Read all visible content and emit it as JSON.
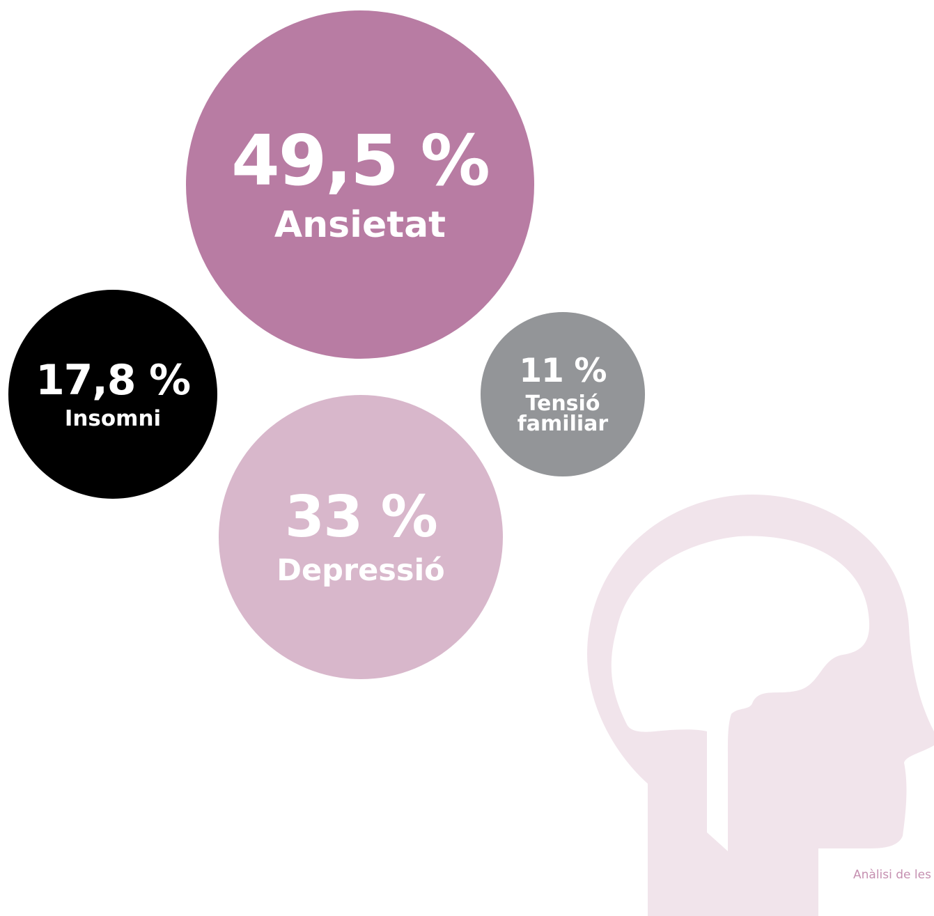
{
  "chart_data": {
    "type": "bubble",
    "categories": [
      "Ansietat",
      "Insomni",
      "Tensió familiar",
      "Depressió"
    ],
    "values": [
      49.5,
      17.8,
      11,
      33
    ],
    "value_labels": [
      "49,5 %",
      "17,8 %",
      "11 %",
      "33 %"
    ],
    "colors": [
      "#b87ca3",
      "#000000",
      "#939598",
      "#d8b7cb"
    ],
    "note": "Anàlisi de les"
  }
}
